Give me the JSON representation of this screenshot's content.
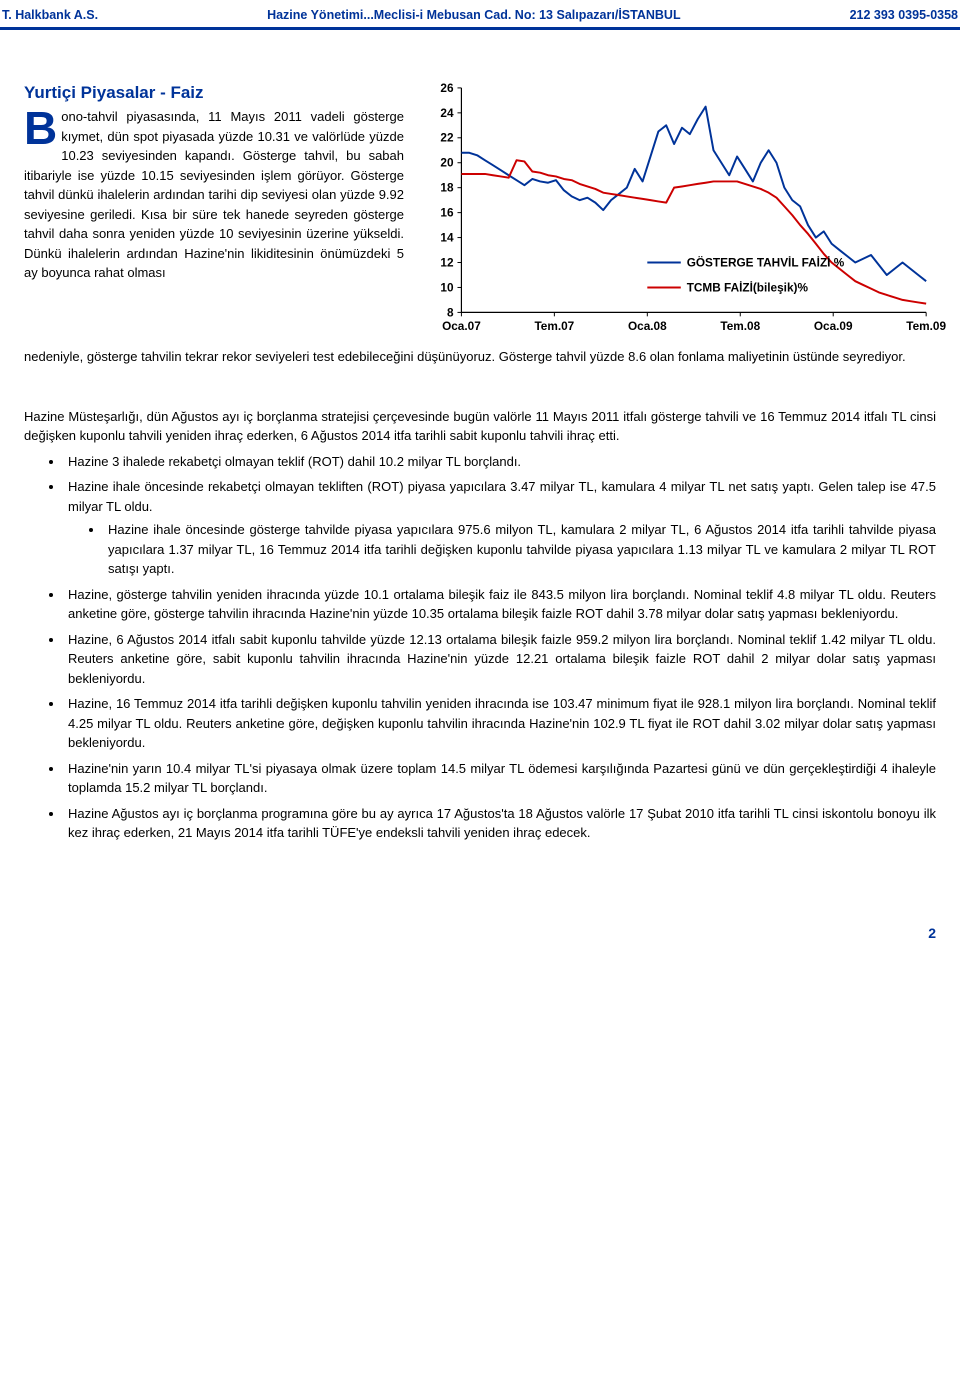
{
  "header": {
    "left": "T. Halkbank A.S.",
    "center": "Hazine Yönetimi...Meclisi-i Mebusan Cad. No: 13 Salıpazarı/İSTANBUL",
    "right": "212 393 0395-0358"
  },
  "article": {
    "title": "Yurtiçi Piyasalar - Faiz",
    "dropcap": "B",
    "body_text": "ono-tahvil piyasasında, 11 Mayıs 2011 vadeli gösterge kıymet, dün spot piyasada yüzde 10.31 ve valörlüde yüzde 10.23 seviyesinden kapandı. Gösterge tahvil, bu sabah itibariyle ise yüzde 10.15 seviyesinden işlem görüyor. Gösterge tahvil dünkü ihalelerin ardından tarihi dip seviyesi olan yüzde 9.92 seviyesine geriledi. Kısa bir süre tek hanede seyreden gösterge tahvil daha sonra yeniden yüzde 10 seviyesinin üzerine yükseldi. Dünkü ihalelerin ardından Hazine'nin likiditesinin önümüzdeki 5 ay boyunca rahat olması",
    "follow_text": "nedeniyle, gösterge tahvilin tekrar rekor seviyeleri test edebileceğini düşünüyoruz. Gösterge tahvil yüzde 8.6 olan fonlama maliyetinin üstünde seyrediyor."
  },
  "chart": {
    "type": "line",
    "ylim": [
      8,
      26
    ],
    "ytick_step": 2,
    "yticks": [
      8,
      10,
      12,
      14,
      16,
      18,
      20,
      22,
      24,
      26
    ],
    "xlabels": [
      "Oca.07",
      "Tem.07",
      "Oca.08",
      "Tem.08",
      "Oca.09",
      "Tem.09"
    ],
    "legend": {
      "series1": "GÖSTERGE TAHVİL FAİZİ %",
      "series2": "TCMB FAİZİ(bileşik)%"
    },
    "colors": {
      "series1": "#003399",
      "series2": "#cc0000",
      "axis": "#000000",
      "background": "#ffffff"
    },
    "line_width": 2,
    "series1_data": [
      20.8,
      20.8,
      20.6,
      20.2,
      19.8,
      19.4,
      19.0,
      18.6,
      18.2,
      18.7,
      18.5,
      18.4,
      18.6,
      17.8,
      17.3,
      17.0,
      17.2,
      16.8,
      16.2,
      17.0,
      17.5,
      18.0,
      19.5,
      18.5,
      20.5,
      22.5,
      23.0,
      21.5,
      22.8,
      22.3,
      23.5,
      24.5,
      21.0,
      20.0,
      19.0,
      20.5,
      19.5,
      18.5,
      20.0,
      21.0,
      20.0,
      18.0,
      17.0,
      16.5,
      15.0,
      14.0,
      14.5,
      13.5,
      13.0,
      12.5,
      12.0,
      12.3,
      12.6,
      11.8,
      11.0,
      11.5,
      12.0,
      11.5,
      11.0,
      10.5
    ],
    "series2_data": [
      19.1,
      19.1,
      19.1,
      19.1,
      19.0,
      18.9,
      18.8,
      20.2,
      20.1,
      19.3,
      19.2,
      19.0,
      18.9,
      18.7,
      18.6,
      18.3,
      18.1,
      17.9,
      17.6,
      17.5,
      17.4,
      17.3,
      17.2,
      17.1,
      17.0,
      16.9,
      16.8,
      18.0,
      18.1,
      18.2,
      18.3,
      18.4,
      18.5,
      18.5,
      18.5,
      18.5,
      18.3,
      18.1,
      17.9,
      17.6,
      17.2,
      16.5,
      15.8,
      15.0,
      14.3,
      13.5,
      12.7,
      12.0,
      11.5,
      11.0,
      10.5,
      10.2,
      9.9,
      9.6,
      9.4,
      9.2,
      9.0,
      8.9,
      8.8,
      8.7
    ]
  },
  "section2": {
    "intro": "Hazine Müsteşarlığı, dün Ağustos ayı iç borçlanma stratejisi çerçevesinde bugün valörle 11 Mayıs 2011 itfalı gösterge tahvili ve 16 Temmuz 2014 itfalı TL cinsi değişken kuponlu tahvili yeniden ihraç ederken, 6 Ağustos 2014 itfa tarihli sabit kuponlu tahvili ihraç etti.",
    "bullets": {
      "b1": "Hazine 3 ihalede rekabetçi olmayan teklif (ROT) dahil 10.2 milyar TL borçlandı.",
      "b2": "Hazine ihale öncesinde rekabetçi olmayan tekliften (ROT) piyasa yapıcılara 3.47 milyar TL, kamulara 4 milyar TL net satış yaptı. Gelen talep ise 47.5 milyar TL oldu.",
      "b2_sub1": "Hazine ihale öncesinde gösterge tahvilde piyasa yapıcılara 975.6 milyon TL, kamulara 2 milyar TL, 6 Ağustos 2014 itfa tarihli tahvilde piyasa yapıcılara 1.37 milyar TL, 16 Temmuz 2014 itfa tarihli değişken kuponlu tahvilde piyasa yapıcılara 1.13 milyar TL ve kamulara 2 milyar TL ROT satışı yaptı.",
      "b3": "Hazine, gösterge tahvilin yeniden ihracında yüzde 10.1 ortalama bileşik faiz ile 843.5 milyon lira borçlandı. Nominal teklif 4.8 milyar TL oldu. Reuters anketine göre, gösterge tahvilin ihracında Hazine'nin yüzde 10.35 ortalama bileşik faizle ROT dahil 3.78 milyar dolar satış yapması bekleniyordu.",
      "b4": "Hazine, 6 Ağustos 2014 itfalı sabit kuponlu tahvilde yüzde 12.13 ortalama bileşik faizle 959.2 milyon lira borçlandı. Nominal teklif 1.42 milyar TL oldu. Reuters anketine göre, sabit kuponlu tahvilin ihracında Hazine'nin yüzde 12.21 ortalama bileşik faizle ROT dahil 2 milyar dolar satış yapması bekleniyordu.",
      "b5": "Hazine, 16 Temmuz 2014 itfa tarihli değişken kuponlu tahvilin yeniden ihracında ise 103.47 minimum fiyat ile 928.1 milyon lira borçlandı. Nominal teklif 4.25 milyar TL oldu. Reuters anketine göre, değişken kuponlu tahvilin ihracında Hazine'nin 102.9 TL fiyat ile ROT dahil 3.02 milyar dolar satış yapması bekleniyordu.",
      "b6": "Hazine'nin yarın 10.4 milyar TL'si piyasaya olmak üzere toplam 14.5 milyar TL ödemesi karşılığında Pazartesi günü ve dün gerçekleştirdiği 4 ihaleyle toplamda 15.2 milyar TL borçlandı.",
      "b7": "Hazine Ağustos ayı iç borçlanma programına göre bu ay ayrıca 17 Ağustos'ta 18 Ağustos valörle 17 Şubat 2010 itfa tarihli TL cinsi iskontolu bonoyu ilk kez ihraç ederken, 21 Mayıs 2014 itfa tarihli TÜFE'ye endeksli tahvili yeniden ihraç edecek."
    }
  },
  "page_number": "2"
}
